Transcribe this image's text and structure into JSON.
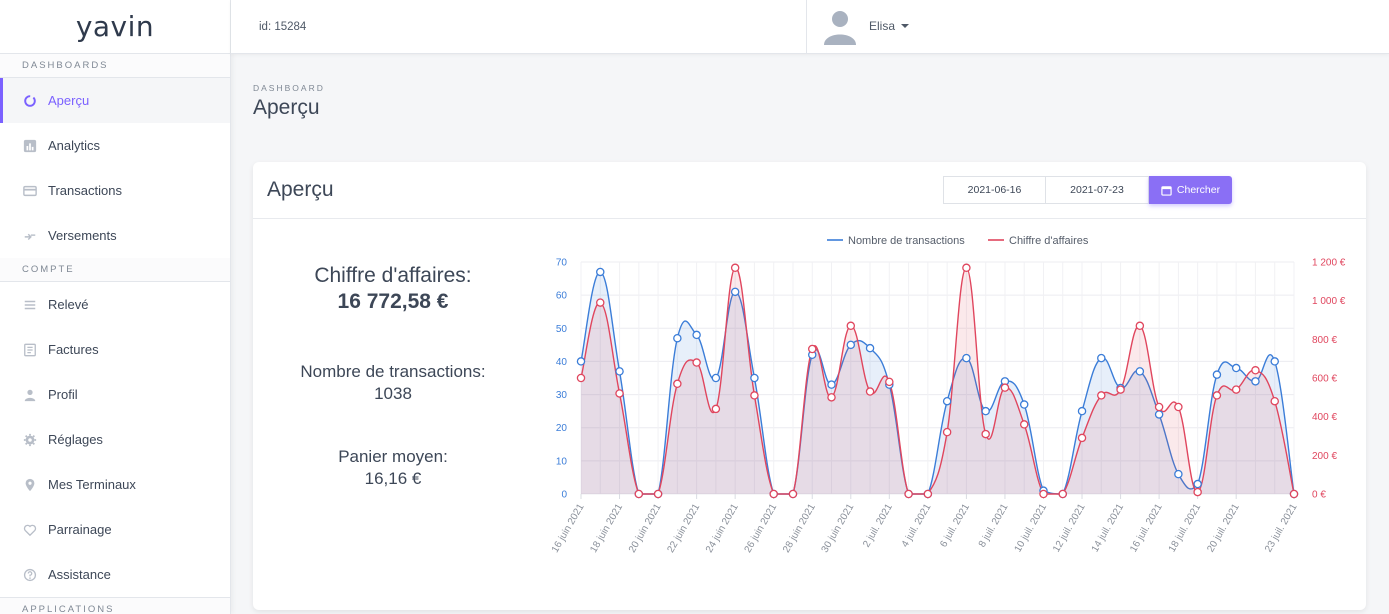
{
  "app": {
    "logo": "yavin"
  },
  "topbar": {
    "id_text": "id: 15284",
    "user_name": "Elisa"
  },
  "sidebar": {
    "sections": [
      {
        "title": "DASHBOARDS",
        "items": [
          {
            "label": "Aperçu",
            "icon": "donut-icon",
            "active": true
          },
          {
            "label": "Analytics",
            "icon": "bar-chart-icon"
          },
          {
            "label": "Transactions",
            "icon": "card-icon"
          },
          {
            "label": "Versements",
            "icon": "transfer-icon"
          }
        ]
      },
      {
        "title": "COMPTE",
        "items": [
          {
            "label": "Relevé",
            "icon": "list-icon"
          },
          {
            "label": "Factures",
            "icon": "invoice-icon"
          },
          {
            "label": "Profil",
            "icon": "person-icon"
          },
          {
            "label": "Réglages",
            "icon": "gear-icon"
          },
          {
            "label": "Mes Terminaux",
            "icon": "map-pin-icon"
          },
          {
            "label": "Parrainage",
            "icon": "heart-icon"
          },
          {
            "label": "Assistance",
            "icon": "help-icon"
          }
        ]
      },
      {
        "title": "APPLICATIONS",
        "items": []
      }
    ]
  },
  "page": {
    "breadcrumb": "DASHBOARD",
    "title": "Aperçu"
  },
  "card": {
    "title": "Aperçu",
    "date_from": "2021-06-16",
    "date_to": "2021-07-23",
    "search_label": "Chercher"
  },
  "stats": {
    "revenue_label": "Chiffre d'affaires:",
    "revenue_value": "16 772,58 €",
    "transactions_label": "Nombre de transactions:",
    "transactions_value": "1038",
    "basket_label": "Panier moyen:",
    "basket_value": "16,16 €"
  },
  "colors": {
    "accent": "#7b61ff",
    "transactions": "#3b7dd8",
    "revenue": "#e0465e"
  },
  "chart_data": {
    "type": "line",
    "x": [
      "16 juin 2021",
      "17 juin 2021",
      "18 juin 2021",
      "19 juin 2021",
      "20 juin 2021",
      "21 juin 2021",
      "22 juin 2021",
      "23 juin 2021",
      "24 juin 2021",
      "25 juin 2021",
      "26 juin 2021",
      "27 juin 2021",
      "28 juin 2021",
      "29 juin 2021",
      "30 juin 2021",
      "1 juil. 2021",
      "2 juil. 2021",
      "3 juil. 2021",
      "4 juil. 2021",
      "5 juil. 2021",
      "6 juil. 2021",
      "7 juil. 2021",
      "8 juil. 2021",
      "9 juil. 2021",
      "10 juil. 2021",
      "11 juil. 2021",
      "12 juil. 2021",
      "13 juil. 2021",
      "14 juil. 2021",
      "15 juil. 2021",
      "16 juil. 2021",
      "17 juil. 2021",
      "18 juil. 2021",
      "19 juil. 2021",
      "20 juil. 2021",
      "21 juil. 2021",
      "22 juil. 2021",
      "23 juil. 2021"
    ],
    "x_tick_labels": [
      "16 juin 2021",
      "18 juin 2021",
      "20 juin 2021",
      "22 juin 2021",
      "24 juin 2021",
      "26 juin 2021",
      "28 juin 2021",
      "30 juin 2021",
      "2 juil. 2021",
      "4 juil. 2021",
      "6 juil. 2021",
      "8 juil. 2021",
      "10 juil. 2021",
      "12 juil. 2021",
      "14 juil. 2021",
      "16 juil. 2021",
      "18 juil. 2021",
      "20 juil. 2021",
      "23 juil. 2021"
    ],
    "series": [
      {
        "name": "Nombre de transactions",
        "axis": "left",
        "values": [
          40,
          67,
          37,
          0,
          0,
          47,
          48,
          35,
          61,
          35,
          0,
          0,
          42,
          33,
          45,
          44,
          33,
          0,
          0,
          28,
          41,
          25,
          34,
          27,
          1,
          0,
          25,
          41,
          32,
          37,
          24,
          6,
          3,
          36,
          38,
          34,
          40,
          0
        ]
      },
      {
        "name": "Chiffre d'affaires",
        "axis": "right",
        "values": [
          600,
          990,
          520,
          0,
          0,
          570,
          680,
          440,
          1170,
          510,
          0,
          0,
          750,
          500,
          870,
          530,
          580,
          0,
          0,
          320,
          1170,
          310,
          550,
          360,
          0,
          0,
          290,
          510,
          540,
          870,
          450,
          450,
          10,
          510,
          540,
          640,
          480,
          0
        ]
      }
    ],
    "y_left": {
      "ticks": [
        0,
        10,
        20,
        30,
        40,
        50,
        60,
        70
      ],
      "range": [
        0,
        70
      ]
    },
    "y_right": {
      "ticks": [
        "0 €",
        "200 €",
        "400 €",
        "600 €",
        "800 €",
        "1 000 €",
        "1 200 €"
      ],
      "range": [
        0,
        1200
      ]
    },
    "legend": "top",
    "grid": true
  }
}
